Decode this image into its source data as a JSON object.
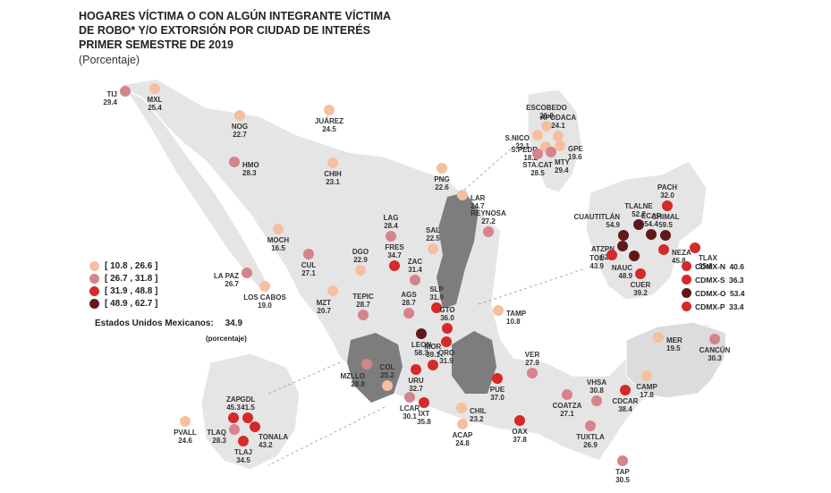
{
  "title_lines": [
    "HOGARES VÍCTIMA O CON ALGÚN INTEGRANTE VÍCTIMA",
    "DE ROBO* Y/O EXTORSIÓN POR CIUDAD DE INTERÉS",
    "PRIMER SEMESTRE DE 2019"
  ],
  "subtitle": "(Porcentaje)",
  "colors": {
    "c1": "#f5bfa0",
    "c2": "#d4848a",
    "c3": "#d42a2a",
    "c4": "#5e1a1a",
    "land": "#e5e5e5",
    "land_border": "#ffffff",
    "highlight": "#7d7d7d"
  },
  "legend": [
    {
      "label": "[ 10.8 , 26.6 ]",
      "cls": "c1"
    },
    {
      "label": "[ 26.7 , 31.8 ]",
      "cls": "c2"
    },
    {
      "label": "[ 31.9 , 48.8 ]",
      "cls": "c3"
    },
    {
      "label": "[ 48.9 , 62.7 ]",
      "cls": "c4"
    }
  ],
  "national": {
    "label": "Estados Unidos Mexicanos:",
    "value": "34.9",
    "unit": "(porcentaje)"
  },
  "cdmx": [
    {
      "label": "CDMX-N",
      "value": "40.6",
      "cls": "c3"
    },
    {
      "label": "CDMX-S",
      "value": "36.3",
      "cls": "c3"
    },
    {
      "label": "CDMX-O",
      "value": "53.4",
      "cls": "c4"
    },
    {
      "label": "CDMX-P",
      "value": "33.4",
      "cls": "c3"
    }
  ],
  "cities": [
    {
      "name": "TIJ",
      "value": "29.4",
      "cls": "c2"
    },
    {
      "name": "MXL",
      "value": "25.4",
      "cls": "c1"
    },
    {
      "name": "NOG",
      "value": "22.7",
      "cls": "c1"
    },
    {
      "name": "HMO",
      "value": "28.3",
      "cls": "c2"
    },
    {
      "name": "JUÁREZ",
      "value": "24.5",
      "cls": "c1"
    },
    {
      "name": "CHIH",
      "value": "23.1",
      "cls": "c1"
    },
    {
      "name": "PNG",
      "value": "22.6",
      "cls": "c1"
    },
    {
      "name": "LAR",
      "value": "24.7",
      "cls": "c1"
    },
    {
      "name": "REYNOSA",
      "value": "27.2",
      "cls": "c2"
    },
    {
      "name": "LAG",
      "value": "28.4",
      "cls": "c2"
    },
    {
      "name": "SAL",
      "value": "22.5",
      "cls": "c1"
    },
    {
      "name": "MOCH",
      "value": "16.5",
      "cls": "c1"
    },
    {
      "name": "DGO",
      "value": "22.9",
      "cls": "c1"
    },
    {
      "name": "CUL",
      "value": "27.1",
      "cls": "c2"
    },
    {
      "name": "LA PAZ",
      "value": "26.7",
      "cls": "c2"
    },
    {
      "name": "LOS CABOS",
      "value": "19.0",
      "cls": "c1"
    },
    {
      "name": "MZT",
      "value": "20.7",
      "cls": "c1"
    },
    {
      "name": "FRES",
      "value": "34.7",
      "cls": "c3"
    },
    {
      "name": "ZAC",
      "value": "31.4",
      "cls": "c2"
    },
    {
      "name": "AGS",
      "value": "28.7",
      "cls": "c2"
    },
    {
      "name": "SLP",
      "value": "31.9",
      "cls": "c3"
    },
    {
      "name": "TEPIC",
      "value": "28.7",
      "cls": "c2"
    },
    {
      "name": "TAMP",
      "value": "10.8",
      "cls": "c1"
    },
    {
      "name": "GTO",
      "value": "36.0",
      "cls": "c3"
    },
    {
      "name": "LEON",
      "value": "58.3",
      "cls": "c4"
    },
    {
      "name": "QRO",
      "value": "31.9",
      "cls": "c3"
    },
    {
      "name": "MOR",
      "value": "39.1",
      "cls": "c3"
    },
    {
      "name": "URU",
      "value": "32.7",
      "cls": "c3"
    },
    {
      "name": "MZLLO",
      "value": "28.8",
      "cls": "c2"
    },
    {
      "name": "COL",
      "value": "25.2",
      "cls": "c1"
    },
    {
      "name": "LCAR",
      "value": "30.1",
      "cls": "c2"
    },
    {
      "name": "IXT",
      "value": "35.8",
      "cls": "c3"
    },
    {
      "name": "CHIL",
      "value": "23.2",
      "cls": "c1"
    },
    {
      "name": "ACAP",
      "value": "24.8",
      "cls": "c1"
    },
    {
      "name": "PUE",
      "value": "37.0",
      "cls": "c3"
    },
    {
      "name": "VER",
      "value": "27.9",
      "cls": "c2"
    },
    {
      "name": "OAX",
      "value": "37.8",
      "cls": "c3"
    },
    {
      "name": "COATZA",
      "value": "27.1",
      "cls": "c2"
    },
    {
      "name": "VHSA",
      "value": "30.8",
      "cls": "c2"
    },
    {
      "name": "CDCAR",
      "value": "38.4",
      "cls": "c3"
    },
    {
      "name": "TUXTLA",
      "value": "26.9",
      "cls": "c2"
    },
    {
      "name": "TAP",
      "value": "30.5",
      "cls": "c2"
    },
    {
      "name": "CAMP",
      "value": "17.8",
      "cls": "c1"
    },
    {
      "name": "MER",
      "value": "19.5",
      "cls": "c1"
    },
    {
      "name": "CANCÚN",
      "value": "30.3",
      "cls": "c2"
    },
    {
      "name": "ESCOBEDO",
      "value": "26.0",
      "cls": "c1"
    },
    {
      "name": "S.NICO",
      "value": "22.1",
      "cls": "c1"
    },
    {
      "name": "APODACA",
      "value": "24.1",
      "cls": "c1"
    },
    {
      "name": "S.PEDR",
      "value": "18.2",
      "cls": "c1"
    },
    {
      "name": "GPE",
      "value": "19.6",
      "cls": "c1"
    },
    {
      "name": "STA.CAT",
      "value": "28.5",
      "cls": "c2"
    },
    {
      "name": "MTY",
      "value": "29.4",
      "cls": "c2"
    },
    {
      "name": "TLALNE",
      "value": "52.2",
      "cls": "c4"
    },
    {
      "name": "PACH",
      "value": "32.0",
      "cls": "c3"
    },
    {
      "name": "CUAUTITLÁN",
      "value": "54.9",
      "cls": "c4"
    },
    {
      "name": "ECAP",
      "value": "54.4",
      "cls": "c4"
    },
    {
      "name": "CHIMAL",
      "value": "59.5",
      "cls": "c4"
    },
    {
      "name": "ATZPN",
      "value": "62.7",
      "cls": "c4"
    },
    {
      "name": "NEZA",
      "value": "45.8",
      "cls": "c3"
    },
    {
      "name": "TLAX",
      "value": "35.6",
      "cls": "c3"
    },
    {
      "name": "TOL",
      "value": "43.9",
      "cls": "c3"
    },
    {
      "name": "NAUC",
      "value": "48.9",
      "cls": "c4"
    },
    {
      "name": "CUER",
      "value": "39.2",
      "cls": "c3"
    },
    {
      "name": "ZAP",
      "value": "45.3",
      "cls": "c3"
    },
    {
      "name": "GDL",
      "value": "41.5",
      "cls": "c3"
    },
    {
      "name": "TONALA",
      "value": "43.2",
      "cls": "c3"
    },
    {
      "name": "TLAQ",
      "value": "28.3",
      "cls": "c2"
    },
    {
      "name": "TLAJ",
      "value": "34.5",
      "cls": "c3"
    },
    {
      "name": "PVALL",
      "value": "24.6",
      "cls": "c1"
    }
  ]
}
